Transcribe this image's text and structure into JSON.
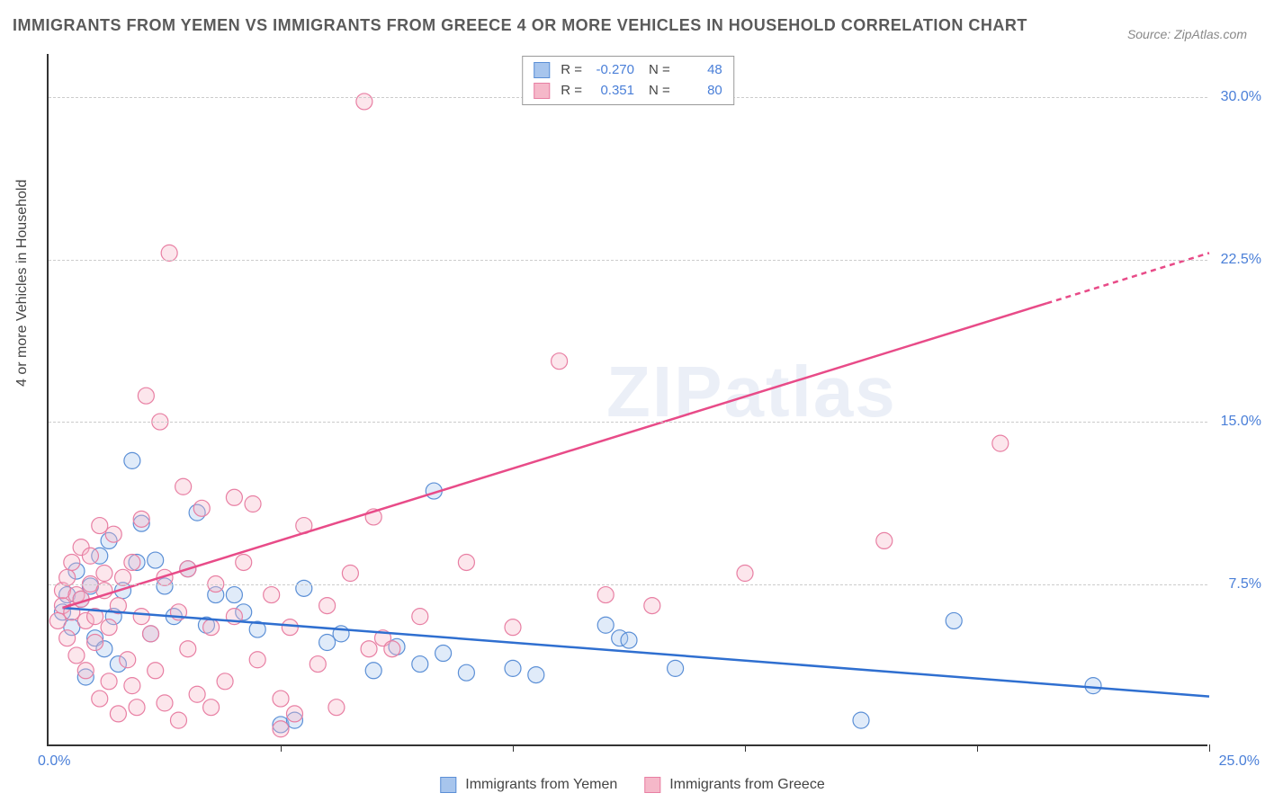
{
  "title": "IMMIGRANTS FROM YEMEN VS IMMIGRANTS FROM GREECE 4 OR MORE VEHICLES IN HOUSEHOLD CORRELATION CHART",
  "source": "Source: ZipAtlas.com",
  "watermark": "ZIPatlas",
  "y_axis_label": "4 or more Vehicles in Household",
  "chart": {
    "type": "scatter",
    "xlim": [
      0,
      25
    ],
    "ylim": [
      0,
      32
    ],
    "x_origin_label": "0.0%",
    "x_max_label": "25.0%",
    "x_ticks": [
      5,
      10,
      15,
      20,
      25
    ],
    "y_gridlines": [
      {
        "value": 7.5,
        "label": "7.5%"
      },
      {
        "value": 15.0,
        "label": "15.0%"
      },
      {
        "value": 22.5,
        "label": "22.5%"
      },
      {
        "value": 30.0,
        "label": "30.0%"
      }
    ],
    "background_color": "#ffffff",
    "grid_color": "#cccccc",
    "marker_radius": 9,
    "marker_stroke_width": 1.2,
    "marker_fill_opacity": 0.35,
    "line_width": 2.5,
    "series": [
      {
        "id": "yemen",
        "label": "Immigrants from Yemen",
        "color_fill": "#a7c5ed",
        "color_stroke": "#5b8fd6",
        "line_color": "#2f6fd0",
        "stats": {
          "R": "-0.270",
          "N": "48"
        },
        "trend": {
          "x1": 0.3,
          "y1": 6.4,
          "x2": 25,
          "y2": 2.3,
          "dashed_from_x": null
        },
        "points": [
          [
            0.3,
            6.2
          ],
          [
            0.4,
            7.0
          ],
          [
            0.5,
            5.5
          ],
          [
            0.6,
            8.1
          ],
          [
            0.7,
            6.8
          ],
          [
            0.8,
            3.2
          ],
          [
            0.9,
            7.4
          ],
          [
            1.0,
            5.0
          ],
          [
            1.1,
            8.8
          ],
          [
            1.2,
            4.5
          ],
          [
            1.3,
            9.5
          ],
          [
            1.4,
            6.0
          ],
          [
            1.5,
            3.8
          ],
          [
            1.6,
            7.2
          ],
          [
            1.8,
            13.2
          ],
          [
            1.9,
            8.5
          ],
          [
            2.0,
            10.3
          ],
          [
            2.2,
            5.2
          ],
          [
            2.3,
            8.6
          ],
          [
            2.5,
            7.4
          ],
          [
            2.7,
            6.0
          ],
          [
            3.0,
            8.2
          ],
          [
            3.2,
            10.8
          ],
          [
            3.4,
            5.6
          ],
          [
            3.6,
            7.0
          ],
          [
            4.0,
            7.0
          ],
          [
            4.2,
            6.2
          ],
          [
            4.5,
            5.4
          ],
          [
            5.0,
            1.0
          ],
          [
            5.3,
            1.2
          ],
          [
            5.5,
            7.3
          ],
          [
            6.0,
            4.8
          ],
          [
            6.3,
            5.2
          ],
          [
            7.0,
            3.5
          ],
          [
            7.5,
            4.6
          ],
          [
            8.0,
            3.8
          ],
          [
            8.3,
            11.8
          ],
          [
            8.5,
            4.3
          ],
          [
            9.0,
            3.4
          ],
          [
            10.0,
            3.6
          ],
          [
            10.5,
            3.3
          ],
          [
            12.0,
            5.6
          ],
          [
            12.3,
            5.0
          ],
          [
            12.5,
            4.9
          ],
          [
            13.5,
            3.6
          ],
          [
            17.5,
            1.2
          ],
          [
            19.5,
            5.8
          ],
          [
            22.5,
            2.8
          ]
        ]
      },
      {
        "id": "greece",
        "label": "Immigrants from Greece",
        "color_fill": "#f5b8c9",
        "color_stroke": "#e87fa3",
        "line_color": "#e84b88",
        "stats": {
          "R": "0.351",
          "N": "80"
        },
        "trend": {
          "x1": 0.3,
          "y1": 6.4,
          "x2": 25,
          "y2": 22.8,
          "dashed_from_x": 21.5
        },
        "points": [
          [
            0.2,
            5.8
          ],
          [
            0.3,
            6.5
          ],
          [
            0.3,
            7.2
          ],
          [
            0.4,
            5.0
          ],
          [
            0.4,
            7.8
          ],
          [
            0.5,
            6.2
          ],
          [
            0.5,
            8.5
          ],
          [
            0.6,
            4.2
          ],
          [
            0.6,
            7.0
          ],
          [
            0.7,
            6.8
          ],
          [
            0.7,
            9.2
          ],
          [
            0.8,
            3.5
          ],
          [
            0.8,
            5.8
          ],
          [
            0.9,
            7.5
          ],
          [
            0.9,
            8.8
          ],
          [
            1.0,
            4.8
          ],
          [
            1.0,
            6.0
          ],
          [
            1.1,
            10.2
          ],
          [
            1.1,
            2.2
          ],
          [
            1.2,
            7.2
          ],
          [
            1.2,
            8.0
          ],
          [
            1.3,
            3.0
          ],
          [
            1.3,
            5.5
          ],
          [
            1.4,
            9.8
          ],
          [
            1.5,
            6.5
          ],
          [
            1.5,
            1.5
          ],
          [
            1.6,
            7.8
          ],
          [
            1.7,
            4.0
          ],
          [
            1.8,
            8.5
          ],
          [
            1.8,
            2.8
          ],
          [
            1.9,
            1.8
          ],
          [
            2.0,
            6.0
          ],
          [
            2.0,
            10.5
          ],
          [
            2.1,
            16.2
          ],
          [
            2.2,
            5.2
          ],
          [
            2.3,
            3.5
          ],
          [
            2.4,
            15.0
          ],
          [
            2.5,
            7.8
          ],
          [
            2.5,
            2.0
          ],
          [
            2.6,
            22.8
          ],
          [
            2.8,
            6.2
          ],
          [
            2.8,
            1.2
          ],
          [
            2.9,
            12.0
          ],
          [
            3.0,
            4.5
          ],
          [
            3.0,
            8.2
          ],
          [
            3.2,
            2.4
          ],
          [
            3.3,
            11.0
          ],
          [
            3.5,
            5.5
          ],
          [
            3.5,
            1.8
          ],
          [
            3.6,
            7.5
          ],
          [
            3.8,
            3.0
          ],
          [
            4.0,
            11.5
          ],
          [
            4.0,
            6.0
          ],
          [
            4.2,
            8.5
          ],
          [
            4.4,
            11.2
          ],
          [
            4.5,
            4.0
          ],
          [
            4.8,
            7.0
          ],
          [
            5.0,
            2.2
          ],
          [
            5.0,
            0.8
          ],
          [
            5.2,
            5.5
          ],
          [
            5.3,
            1.5
          ],
          [
            5.5,
            10.2
          ],
          [
            5.8,
            3.8
          ],
          [
            6.0,
            6.5
          ],
          [
            6.2,
            1.8
          ],
          [
            6.5,
            8.0
          ],
          [
            6.8,
            29.8
          ],
          [
            6.9,
            4.5
          ],
          [
            7.0,
            10.6
          ],
          [
            7.2,
            5.0
          ],
          [
            7.4,
            4.5
          ],
          [
            8.0,
            6.0
          ],
          [
            9.0,
            8.5
          ],
          [
            10.0,
            5.5
          ],
          [
            11.0,
            17.8
          ],
          [
            12.0,
            7.0
          ],
          [
            13.0,
            6.5
          ],
          [
            15.0,
            8.0
          ],
          [
            18.0,
            9.5
          ],
          [
            20.5,
            14.0
          ]
        ]
      }
    ]
  },
  "legend_bottom": [
    {
      "label": "Immigrants from Yemen",
      "fill": "#a7c5ed",
      "stroke": "#5b8fd6"
    },
    {
      "label": "Immigrants from Greece",
      "fill": "#f5b8c9",
      "stroke": "#e87fa3"
    }
  ]
}
